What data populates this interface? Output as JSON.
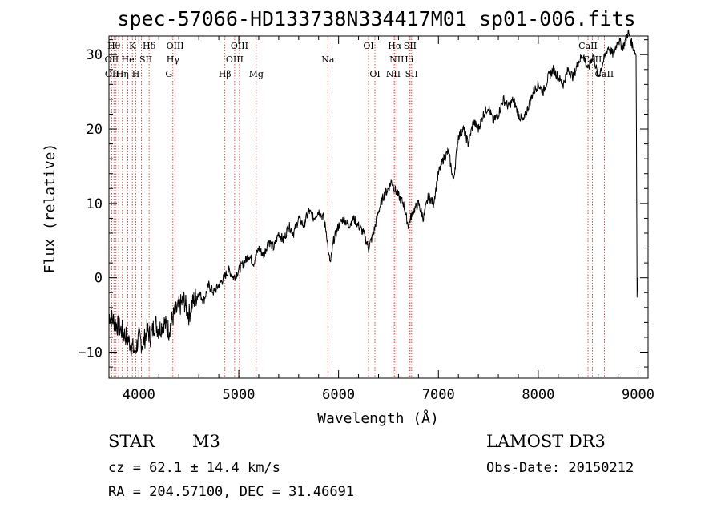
{
  "chart_data": {
    "type": "line",
    "title": "spec-57066-HD133738N334417M01_sp01-006.fits",
    "xlabel": "Wavelength (Å)",
    "ylabel": "Flux (relative)",
    "xlim": [
      3700,
      9100
    ],
    "ylim": [
      -13.5,
      32.5
    ],
    "x_ticks": [
      4000,
      5000,
      6000,
      7000,
      8000,
      9000
    ],
    "y_ticks": [
      -10,
      0,
      10,
      20,
      30
    ],
    "grid": false,
    "series": [
      {
        "name": "spectrum",
        "x": [
          3700,
          3760,
          3820,
          3880,
          3920,
          3960,
          4000,
          4040,
          4080,
          4120,
          4160,
          4200,
          4250,
          4300,
          4350,
          4400,
          4450,
          4500,
          4550,
          4600,
          4650,
          4700,
          4750,
          4800,
          4850,
          4900,
          4950,
          5000,
          5050,
          5100,
          5150,
          5200,
          5250,
          5300,
          5350,
          5400,
          5450,
          5500,
          5550,
          5600,
          5650,
          5700,
          5750,
          5800,
          5850,
          5880,
          5900,
          5920,
          5950,
          6000,
          6050,
          6100,
          6150,
          6200,
          6250,
          6300,
          6350,
          6400,
          6450,
          6500,
          6530,
          6560,
          6600,
          6650,
          6680,
          6700,
          6720,
          6750,
          6800,
          6850,
          6900,
          6950,
          7000,
          7050,
          7100,
          7150,
          7200,
          7250,
          7300,
          7350,
          7400,
          7450,
          7500,
          7550,
          7600,
          7650,
          7700,
          7750,
          7800,
          7850,
          7900,
          7950,
          8000,
          8050,
          8100,
          8150,
          8200,
          8250,
          8300,
          8350,
          8400,
          8450,
          8500,
          8550,
          8600,
          8650,
          8700,
          8750,
          8800,
          8850,
          8900,
          8950,
          8980,
          8990,
          8995
        ],
        "y": [
          -5,
          -6,
          -7,
          -8,
          -9,
          -10,
          -8,
          -9,
          -7,
          -8,
          -6,
          -7,
          -6,
          -7,
          -5,
          -4,
          -3,
          -5,
          -3,
          -2,
          -3,
          -1,
          -2,
          -1,
          0,
          1,
          0,
          1,
          2,
          3,
          2,
          4,
          3,
          5,
          4,
          6,
          5,
          7,
          6,
          8,
          7,
          9,
          8,
          9,
          8,
          6,
          3,
          2,
          5,
          7,
          8,
          7,
          8,
          7,
          6,
          4,
          6,
          9,
          11,
          12,
          13,
          12,
          11,
          10,
          8,
          7,
          8,
          9,
          10,
          8,
          11,
          10,
          14,
          16,
          17,
          13,
          19,
          20,
          18,
          21,
          20,
          22,
          23,
          21,
          22,
          24,
          23,
          24,
          22,
          21,
          23,
          25,
          26,
          25,
          27,
          28,
          27,
          26,
          28,
          27,
          29,
          30,
          28,
          30,
          27,
          29,
          31,
          30,
          32,
          31,
          33,
          31,
          30,
          -2,
          0
        ]
      }
    ],
    "line_labels": {
      "row1": [
        "Hθ",
        "K",
        "Hδ",
        "OIII",
        "OIII",
        "OI",
        "Hα",
        "SII",
        "CaII"
      ],
      "row2": [
        "OII",
        "He",
        "SII",
        "Hγ",
        "OIII",
        "Na",
        "NII",
        "Li",
        "CaII"
      ],
      "row3": [
        "OII",
        "Hη",
        "H",
        "G",
        "Hβ",
        "Mg",
        "OI",
        "NII",
        "SII",
        "CaII"
      ]
    }
  },
  "info": {
    "object_class": "STAR",
    "subclass": "M3",
    "survey": "LAMOST DR3",
    "cz": "cz = 62.1 ± 14.4 km/s",
    "obs_date": "Obs-Date: 20150212",
    "coords": "RA = 204.57100, DEC =  31.46691"
  }
}
